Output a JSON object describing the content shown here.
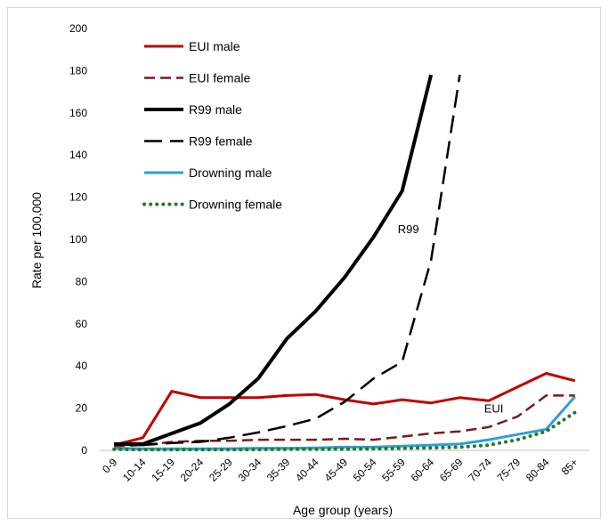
{
  "chart_data": {
    "type": "line",
    "title": "",
    "xlabel": "Age group (years)",
    "ylabel": "Rate per 100,000",
    "ylim": [
      0,
      200
    ],
    "yticks": [
      0,
      20,
      40,
      60,
      80,
      100,
      120,
      140,
      160,
      180,
      200
    ],
    "grid": false,
    "legend_position": "top-left",
    "categories": [
      "0-9",
      "10-14",
      "15-19",
      "20-24",
      "25-29",
      "30-34",
      "35-39",
      "40-44",
      "45-49",
      "50-54",
      "55-59",
      "60-64",
      "65-69",
      "70-74",
      "75-79",
      "80-84",
      "85+"
    ],
    "series": [
      {
        "name": "EUI male",
        "color": "#c00000",
        "style": "solid",
        "width": 3,
        "values": [
          2.5,
          6,
          28,
          25,
          25,
          25,
          26,
          26.5,
          24,
          22,
          24,
          22.5,
          25,
          23.5,
          30,
          36.5,
          33
        ]
      },
      {
        "name": "EUI female",
        "color": "#7b1a1a",
        "style": "dashed",
        "width": 2.5,
        "values": [
          2,
          2.5,
          4,
          4.5,
          4.5,
          5,
          5,
          5,
          5.5,
          5,
          6.5,
          8,
          9,
          11,
          16,
          26,
          26
        ]
      },
      {
        "name": "R99 male",
        "color": "#000000",
        "style": "solid",
        "width": 4,
        "values": [
          3,
          3,
          8,
          13,
          22,
          34,
          53,
          66,
          82,
          101,
          123,
          178,
          null,
          null,
          null,
          null,
          null
        ]
      },
      {
        "name": "R99 female",
        "color": "#000000",
        "style": "longdash",
        "width": 2.5,
        "values": [
          3,
          2.5,
          3.5,
          4,
          6,
          8.5,
          11.5,
          15,
          23,
          34,
          42,
          90,
          178,
          null,
          null,
          null,
          null
        ]
      },
      {
        "name": "Drowning male",
        "color": "#2e9fd6",
        "style": "solid",
        "width": 3,
        "values": [
          1,
          0.7,
          0.7,
          0.7,
          0.8,
          1,
          1,
          1.2,
          1.5,
          1.5,
          2,
          2.5,
          3,
          5,
          7.5,
          10,
          25.5
        ]
      },
      {
        "name": "Drowning female",
        "color": "#1e7d24",
        "style": "dotted",
        "width": 4,
        "values": [
          0.5,
          0.3,
          0.3,
          0.3,
          0.3,
          0.4,
          0.5,
          0.5,
          0.6,
          0.7,
          1,
          1.2,
          1.5,
          2.5,
          5,
          9,
          18
        ]
      }
    ],
    "annotations": [
      {
        "text": "R99",
        "x": "55-59",
        "y": 105
      },
      {
        "text": "EUI",
        "x": "70-74",
        "y": 20
      }
    ]
  }
}
